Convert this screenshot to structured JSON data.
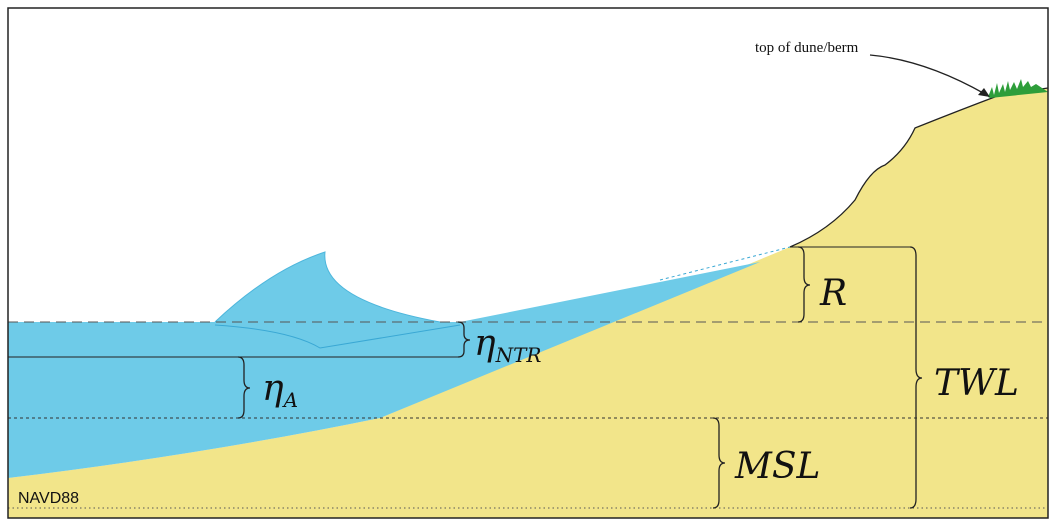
{
  "labels": {
    "dune": "top of dune/berm",
    "runup": "R",
    "ntr": {
      "symbol": "η",
      "subscript": "NTR"
    },
    "astro": {
      "symbol": "η",
      "subscript": "A"
    },
    "twl": "TWL",
    "msl": "MSL",
    "datum": "NAVD88"
  }
}
